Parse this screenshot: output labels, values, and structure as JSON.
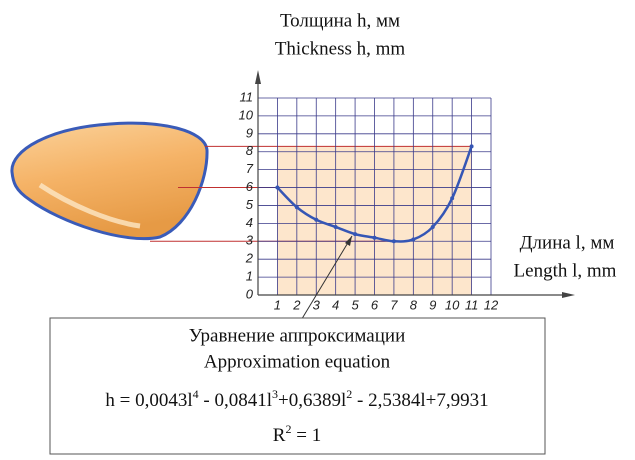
{
  "chart_data": {
    "type": "line",
    "y_label": [
      "Толщина h, мм",
      "Thickness h, mm"
    ],
    "x_label": [
      "Длина l, мм",
      "Length l, mm"
    ],
    "x": [
      1,
      2,
      3,
      4,
      5,
      6,
      7,
      8,
      9,
      10,
      11
    ],
    "series": [
      {
        "color": "#3556b5",
        "values": [
          6.0,
          4.9,
          4.2,
          3.8,
          3.4,
          3.2,
          3.0,
          3.1,
          3.8,
          5.4,
          8.3
        ]
      }
    ],
    "xlim": [
      0,
      12
    ],
    "ylim": [
      0,
      11
    ],
    "xticks": [
      1,
      2,
      3,
      4,
      5,
      6,
      7,
      8,
      9,
      10,
      11,
      12
    ],
    "yticks": [
      0,
      1,
      2,
      3,
      4,
      5,
      6,
      7,
      8,
      9,
      10,
      11
    ],
    "grid": true,
    "equation_title": [
      "Уравнение аппроксимации",
      "Approximation equation"
    ],
    "equation": [
      "h = 0,0043l",
      "4",
      " - 0,0841l",
      "3",
      "+0,6389l",
      "2",
      " - 2,5384l+7,9931"
    ],
    "r_squared": [
      "R",
      "2",
      " = 1"
    ]
  }
}
